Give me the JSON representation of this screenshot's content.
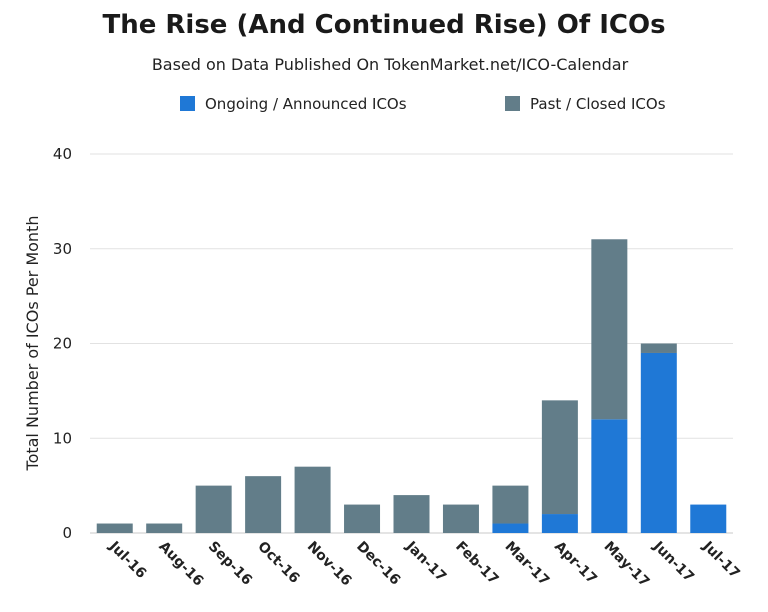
{
  "chart_data": {
    "type": "bar",
    "stacked": true,
    "title": "The Rise (And Continued Rise) Of ICOs",
    "subtitle": "Based on Data Published On TokenMarket.net/ICO-Calendar",
    "xlabel": "",
    "ylabel": "Total Number of ICOs Per Month",
    "ylim": [
      0,
      40
    ],
    "yticks": [
      0,
      10,
      20,
      30,
      40
    ],
    "grid": true,
    "legend_position": "top",
    "categories": [
      "Jul-16",
      "Aug-16",
      "Sep-16",
      "Oct-16",
      "Nov-16",
      "Dec-16",
      "Jan-17",
      "Feb-17",
      "Mar-17",
      "Apr-17",
      "May-17",
      "Jun-17",
      "Jul-17"
    ],
    "series": [
      {
        "name": "Ongoing / Announced ICOs",
        "color": "#1f78d6",
        "values": [
          0,
          0,
          0,
          0,
          0,
          0,
          0,
          0,
          1,
          2,
          12,
          19,
          3
        ]
      },
      {
        "name": "Past / Closed ICOs",
        "color": "#627d89",
        "values": [
          1,
          1,
          5,
          6,
          7,
          3,
          4,
          3,
          4,
          12,
          19,
          1,
          0
        ]
      }
    ]
  }
}
